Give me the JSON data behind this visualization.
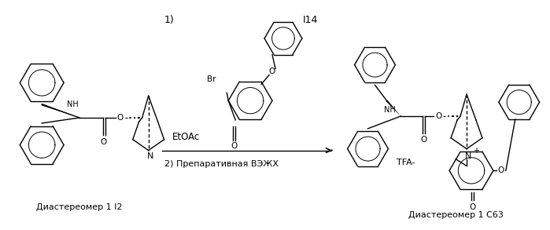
{
  "background_color": "#ffffff",
  "figsize": [
    6.99,
    2.93
  ],
  "dpi": 100,
  "left_structure_label": "Диастереомер 1 I2",
  "right_structure_label": "Диастереомер 1 C63",
  "reagent_1": "1)",
  "reagent_I14": "I14",
  "reagent_EtOAc": "EtOAc",
  "reagent_HPLC": "2) Препаративная ВЭЖХ",
  "reagent_Br": "Br",
  "reagent_TFA": "TFA-",
  "text_color": "#000000"
}
